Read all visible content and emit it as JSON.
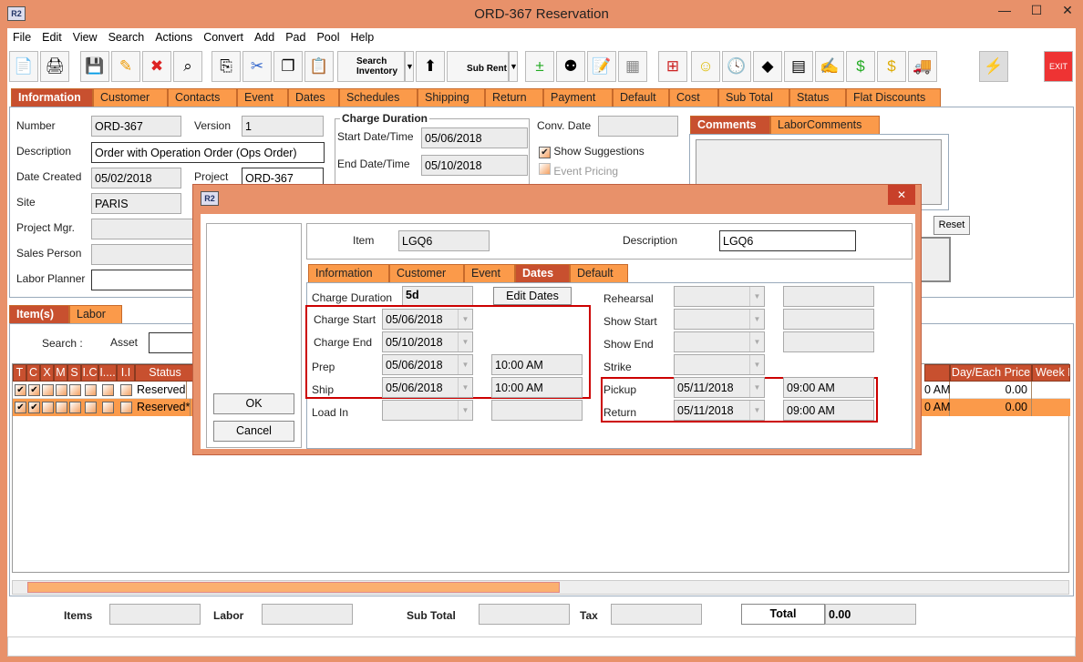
{
  "window": {
    "title": "ORD-367 Reservation",
    "logo": "R2",
    "minimize": "—",
    "maximize": "☐",
    "close": "✕"
  },
  "menu": [
    "File",
    "Edit",
    "View",
    "Search",
    "Actions",
    "Convert",
    "Add",
    "Pad",
    "Pool",
    "Help"
  ],
  "toolbar": {
    "search_inventory": "Search Inventory",
    "sub_rent": "Sub Rent",
    "exit": "EXIT"
  },
  "tabs": [
    "Information",
    "Customer",
    "Contacts",
    "Event",
    "Dates",
    "Schedules",
    "Shipping",
    "Return",
    "Payment",
    "Default",
    "Cost",
    "Sub Total",
    "Status",
    "Flat Discounts"
  ],
  "info": {
    "number_label": "Number",
    "number": "ORD-367",
    "version_label": "Version",
    "version": "1",
    "description_label": "Description",
    "description": "Order with Operation Order (Ops Order)",
    "date_created_label": "Date Created",
    "date_created": "05/02/2018",
    "project_label": "Project",
    "project": "ORD-367",
    "site_label": "Site",
    "site": "PARIS",
    "project_mgr_label": "Project Mgr.",
    "sales_person_label": "Sales Person",
    "labor_planner_label": "Labor Planner",
    "charge_duration_title": "Charge Duration",
    "start_label": "Start Date/Time",
    "start": "05/06/2018",
    "end_label": "End Date/Time",
    "end": "05/10/2018",
    "conv_date_label": "Conv. Date",
    "show_suggestions": "Show Suggestions",
    "event_pricing": "Event Pricing",
    "comment_tabs": [
      "Comments",
      "LaborComments"
    ],
    "reset": "Reset"
  },
  "lower_tabs": [
    "Item(s)",
    "Labor"
  ],
  "search": {
    "label": "Search :",
    "asset_label": "Asset"
  },
  "grid": {
    "columns": [
      "T",
      "C",
      "X",
      "M",
      "S",
      "I.C",
      "I....",
      "I.I",
      "Status"
    ],
    "right_columns": [
      "Day/Each Price",
      "Week P"
    ],
    "rows": [
      {
        "t": true,
        "c": true,
        "status": "Reserved",
        "time": "0 AM",
        "price": "0.00"
      },
      {
        "t": true,
        "c": true,
        "status": "Reserved*",
        "time": "0 AM",
        "price": "0.00"
      }
    ]
  },
  "totals": {
    "items": "Items",
    "labor": "Labor",
    "sub_total": "Sub Total",
    "tax": "Tax",
    "total": "Total",
    "total_value": "0.00"
  },
  "dialog": {
    "logo": "R2",
    "close": "✕",
    "ok": "OK",
    "cancel": "Cancel",
    "item_label": "Item",
    "item": "LGQ6",
    "description_label": "Description",
    "description": "LGQ6",
    "tabs": [
      "Information",
      "Customer",
      "Event",
      "Dates",
      "Default"
    ],
    "charge_duration_label": "Charge Duration",
    "charge_duration": "5d",
    "edit_dates": "Edit Dates",
    "charge_start_label": "Charge Start",
    "charge_start": "05/06/2018",
    "charge_end_label": "Charge End",
    "charge_end": "05/10/2018",
    "prep_label": "Prep",
    "prep_date": "05/06/2018",
    "prep_time": "10:00 AM",
    "ship_label": "Ship",
    "ship_date": "05/06/2018",
    "ship_time": "10:00 AM",
    "load_in_label": "Load In",
    "rehearsal_label": "Rehearsal",
    "show_start_label": "Show Start",
    "show_end_label": "Show End",
    "strike_label": "Strike",
    "pickup_label": "Pickup",
    "pickup_date": "05/11/2018",
    "pickup_time": "09:00 AM",
    "return_label": "Return",
    "return_date": "05/11/2018",
    "return_time": "09:00 AM"
  }
}
